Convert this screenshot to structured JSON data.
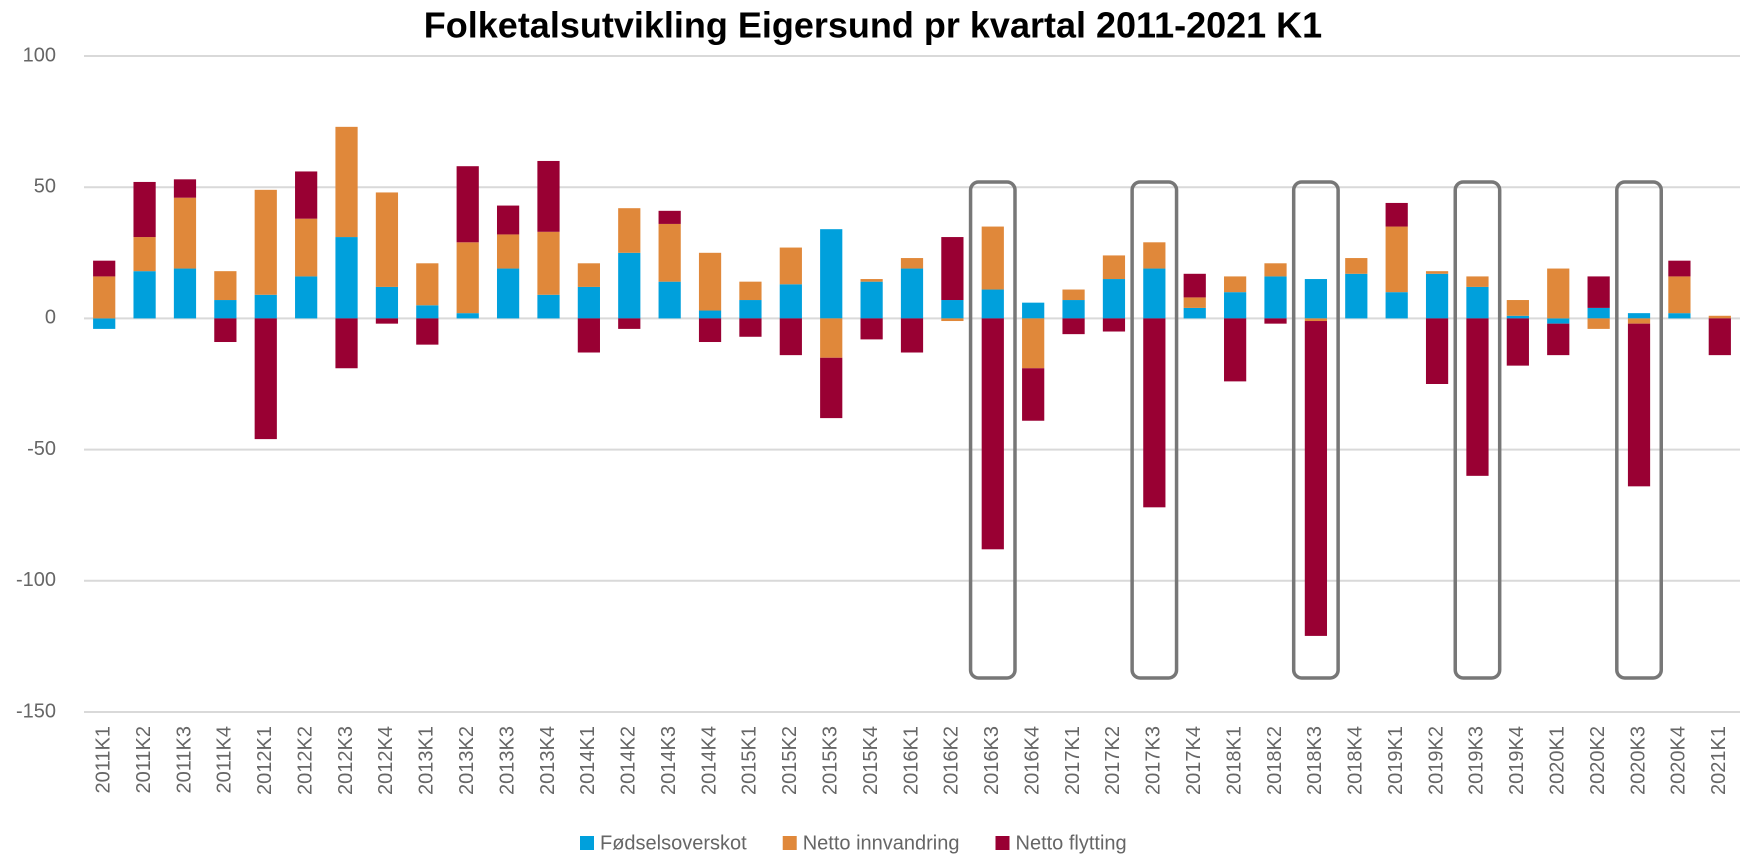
{
  "chart_data": {
    "type": "bar",
    "stacked": true,
    "title": "Folketalsutvikling Eigersund pr kvartal 2011-2021 K1",
    "categories": [
      "2011K1",
      "2011K2",
      "2011K3",
      "2011K4",
      "2012K1",
      "2012K2",
      "2012K3",
      "2012K4",
      "2013K1",
      "2013K2",
      "2013K3",
      "2013K4",
      "2014K1",
      "2014K2",
      "2014K3",
      "2014K4",
      "2015K1",
      "2015K2",
      "2015K3",
      "2015K4",
      "2016K1",
      "2016K2",
      "2016K3",
      "2016K4",
      "2017K1",
      "2017K2",
      "2017K3",
      "2017K4",
      "2018K1",
      "2018K2",
      "2018K3",
      "2018K4",
      "2019K1",
      "2019K2",
      "2019K3",
      "2019K4",
      "2020K1",
      "2020K2",
      "2020K3",
      "2020K4",
      "2021K1"
    ],
    "series": [
      {
        "name": "Fødselsoverskot",
        "color": "#00a0dc",
        "values": [
          -4,
          18,
          19,
          7,
          9,
          16,
          31,
          12,
          5,
          2,
          19,
          9,
          12,
          25,
          14,
          3,
          7,
          13,
          34,
          14,
          19,
          7,
          11,
          6,
          7,
          15,
          19,
          4,
          10,
          16,
          15,
          17,
          10,
          17,
          12,
          1,
          -2,
          4,
          2,
          2,
          0
        ]
      },
      {
        "name": "Netto innvandring",
        "color": "#e0883a",
        "values": [
          16,
          13,
          27,
          11,
          40,
          22,
          42,
          36,
          16,
          27,
          13,
          24,
          9,
          17,
          22,
          22,
          7,
          14,
          -15,
          1,
          4,
          -1,
          24,
          -19,
          4,
          9,
          10,
          4,
          6,
          5,
          -1,
          6,
          25,
          1,
          4,
          6,
          19,
          -4,
          -2,
          14,
          1
        ]
      },
      {
        "name": "Netto flytting",
        "color": "#990033",
        "values": [
          6,
          21,
          7,
          -9,
          -46,
          18,
          -19,
          -2,
          -10,
          29,
          11,
          27,
          -13,
          -4,
          5,
          -9,
          -7,
          -14,
          -23,
          -8,
          -13,
          24,
          -88,
          -20,
          -6,
          -5,
          -72,
          9,
          -24,
          -2,
          -120,
          0,
          9,
          -25,
          -60,
          -18,
          -12,
          12,
          -62,
          6,
          -14
        ]
      }
    ],
    "ylim": [
      -150,
      100
    ],
    "yticks": [
      -150,
      -100,
      -50,
      0,
      50,
      100
    ],
    "grid": true,
    "legend": "bottom"
  }
}
